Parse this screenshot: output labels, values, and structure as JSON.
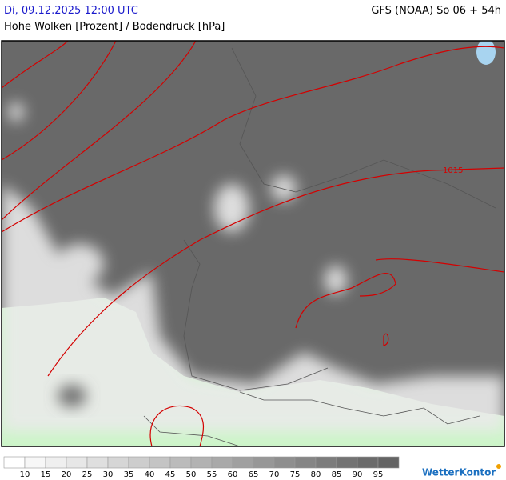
{
  "header": {
    "date": "Di, 09.12.2025 12:00 UTC",
    "model": "GFS (NOAA) So 06 + 54h",
    "title": "Hohe Wolken [Prozent] / Bodendruck [hPa]"
  },
  "map": {
    "isobar_label": "1015"
  },
  "legend": {
    "labels": [
      "10",
      "15",
      "20",
      "25",
      "30",
      "35",
      "40",
      "45",
      "50",
      "55",
      "60",
      "65",
      "70",
      "75",
      "80",
      "85",
      "90",
      "95"
    ],
    "colors": [
      "#ffffff",
      "#f7f7f7",
      "#efefef",
      "#e7e7e7",
      "#dfdfdf",
      "#d6d6d6",
      "#cdcdcd",
      "#c4c4c4",
      "#bbbbbb",
      "#b2b2b2",
      "#a9a9a9",
      "#a0a0a0",
      "#979797",
      "#8e8e8e",
      "#858585",
      "#7c7c7c",
      "#737373",
      "#6b6b6b",
      "#646464"
    ]
  },
  "logo": "WetterKontor"
}
